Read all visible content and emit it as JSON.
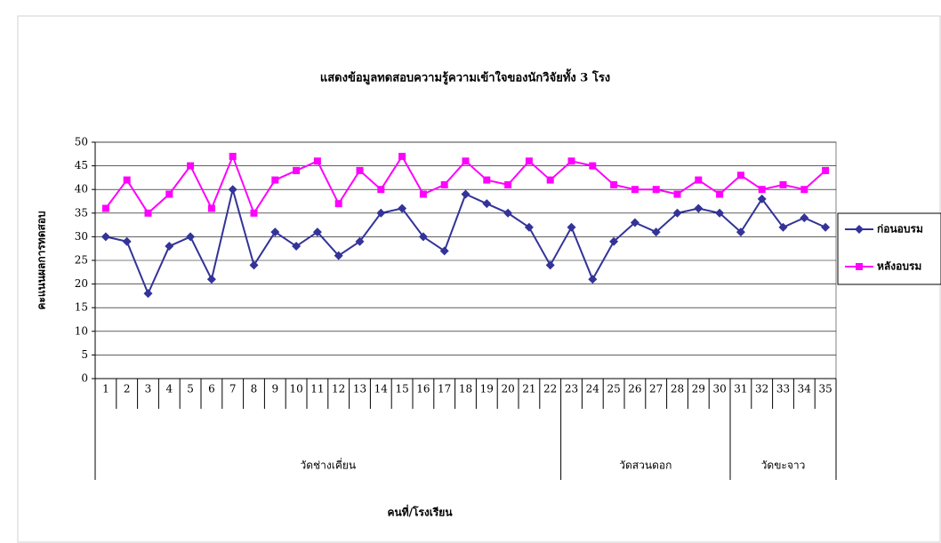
{
  "chart_data": {
    "type": "line",
    "title": "แสดงข้อมูลทดสอบความรู้ความเข้าใจของนักวิจัยทั้ง 3 โรง",
    "x_label": "คนที่/โรงเรียน",
    "y_label": "คะแนนผลการทดสอบ",
    "groups": [
      {
        "name": "วัดช่างเคี่ยน",
        "categories": [
          "1",
          "2",
          "3",
          "4",
          "5",
          "6",
          "7",
          "8",
          "9",
          "10",
          "11",
          "12",
          "13",
          "14",
          "15",
          "16",
          "17",
          "18",
          "19",
          "20",
          "21",
          "22"
        ]
      },
      {
        "name": "วัดสวนดอก",
        "categories": [
          "23",
          "24",
          "25",
          "26",
          "27",
          "28",
          "29",
          "30"
        ]
      },
      {
        "name": "วัดขะจาว",
        "categories": [
          "31",
          "32",
          "33",
          "34",
          "35"
        ]
      }
    ],
    "series": [
      {
        "name": "ก่อนอบรม",
        "color": "#333399",
        "marker": "diamond",
        "values": [
          30,
          29,
          18,
          28,
          30,
          21,
          40,
          24,
          31,
          28,
          31,
          26,
          29,
          35,
          36,
          30,
          27,
          39,
          37,
          35,
          32,
          24,
          32,
          21,
          29,
          33,
          31,
          35,
          36,
          35,
          31,
          38,
          32,
          34,
          32
        ]
      },
      {
        "name": "หลังอบรม",
        "color": "#ff00ff",
        "marker": "square",
        "values": [
          36,
          42,
          35,
          39,
          45,
          36,
          47,
          35,
          42,
          44,
          46,
          37,
          44,
          40,
          47,
          39,
          41,
          46,
          42,
          41,
          46,
          42,
          46,
          45,
          41,
          40,
          40,
          39,
          42,
          39,
          43,
          40,
          41,
          40,
          44
        ]
      }
    ],
    "ylim": [
      0,
      50
    ],
    "yticks": [
      0,
      5,
      10,
      15,
      20,
      25,
      30,
      35,
      40,
      45,
      50
    ],
    "grid": true,
    "legend": "right"
  }
}
